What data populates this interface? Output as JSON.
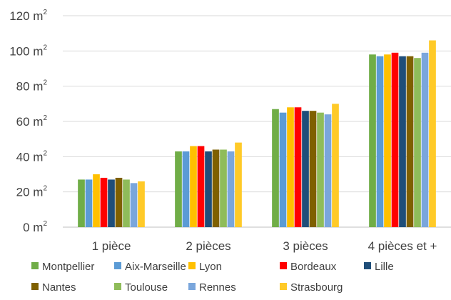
{
  "chart_data": {
    "type": "bar",
    "categories": [
      "1 pièce",
      "2 pièces",
      "3 pièces",
      "4 pièces et +"
    ],
    "y_unit": "m",
    "y_unit_exponent": "2",
    "ylim": [
      0,
      120
    ],
    "yticks": [
      0,
      20,
      40,
      60,
      80,
      100,
      120
    ],
    "grid": true,
    "legend_position": "bottom",
    "series": [
      {
        "name": "Montpellier",
        "color": "#70ad47",
        "values": [
          27,
          43,
          67,
          98
        ]
      },
      {
        "name": "Aix-Marseille",
        "color": "#5b9bd5",
        "values": [
          27,
          43,
          65,
          97
        ]
      },
      {
        "name": "Lyon",
        "color": "#ffc000",
        "values": [
          30,
          46,
          68,
          98
        ]
      },
      {
        "name": "Bordeaux",
        "color": "#ff0000",
        "values": [
          28,
          46,
          68,
          99
        ]
      },
      {
        "name": "Lille",
        "color": "#1f4e79",
        "values": [
          27,
          43,
          66,
          97
        ]
      },
      {
        "name": "Nantes",
        "color": "#7f6000",
        "values": [
          28,
          44,
          66,
          97
        ]
      },
      {
        "name": "Toulouse",
        "color": "#8fbc5a",
        "values": [
          27,
          44,
          65,
          96
        ]
      },
      {
        "name": "Rennes",
        "color": "#7aa6dc",
        "values": [
          25,
          43,
          64,
          99
        ]
      },
      {
        "name": "Strasbourg",
        "color": "#ffca28",
        "values": [
          26,
          48,
          70,
          106
        ]
      }
    ]
  }
}
